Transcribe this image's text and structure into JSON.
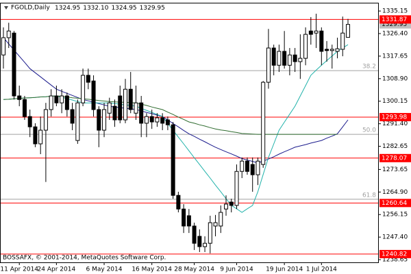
{
  "chart_data": {
    "type": "candlestick",
    "title": "FGOLD,Daily",
    "ohlc_caption": [
      "1324.95",
      "1332.10",
      "1324.95",
      "1329.95"
    ],
    "watermark": "BOSSAFX, © 2001-2014, MetaQuotes Software Corp.",
    "categories": [
      null,
      null,
      null,
      "11 Apr 2014",
      null,
      null,
      null,
      null,
      null,
      null,
      "24 Apr 2014",
      null,
      null,
      null,
      null,
      null,
      null,
      null,
      null,
      "6 May 2014",
      null,
      null,
      null,
      null,
      null,
      null,
      null,
      null,
      "16 May 2014",
      null,
      null,
      null,
      null,
      null,
      null,
      null,
      "28 May 2014",
      null,
      null,
      null,
      null,
      null,
      null,
      null,
      "9 Jun 2014",
      null,
      null,
      null,
      null,
      null,
      null,
      null,
      null,
      "19 Jun 2014",
      null,
      null,
      null,
      null,
      null,
      null,
      "1 Jul 2014",
      null,
      null,
      null,
      null,
      null
    ],
    "open": [
      1318.1,
      1324.8,
      1326.6,
      1302.2,
      1300.8,
      1294.2,
      1290.2,
      1283.6,
      1288.9,
      1296.9,
      1302.2,
      1299.5,
      1302.2,
      1296.9,
      1284.9,
      1299.5,
      1310.2,
      1308.0,
      1296.9,
      1288.9,
      1295.5,
      1298.2,
      1302.2,
      1292.9,
      1304.8,
      1295.5,
      1299.5,
      1291.6,
      1294.2,
      1292.1,
      1293.7,
      1292.9,
      1291.0,
      1263.6,
      1258.3,
      1255.7,
      1251.7,
      1247.7,
      1243.7,
      1245.0,
      1251.7,
      1251.7,
      1258.3,
      1261.0,
      1259.7,
      1272.9,
      1276.9,
      1275.6,
      1271.6,
      1275.6,
      1307.5,
      1320.8,
      1314.1,
      1319.5,
      1314.1,
      1318.1,
      1315.5,
      1316.8,
      1327.4,
      1326.6,
      1327.4,
      1320.3,
      1319.8,
      1319.5,
      1320.3,
      1324.95
    ],
    "high": [
      1328.8,
      1330.6,
      1327.4,
      1306.2,
      1302.2,
      1296.9,
      1291.6,
      1294.2,
      1299.5,
      1304.8,
      1306.2,
      1304.8,
      1303.5,
      1299.5,
      1300.8,
      1312.8,
      1312.8,
      1310.2,
      1298.2,
      1299.5,
      1301.5,
      1300.8,
      1306.2,
      1308.8,
      1311.5,
      1306.2,
      1302.2,
      1295.5,
      1296.9,
      1295.5,
      1295.5,
      1294.2,
      1292.1,
      1265.0,
      1260.2,
      1258.3,
      1253.0,
      1250.4,
      1247.7,
      1255.7,
      1256.0,
      1259.7,
      1263.6,
      1262.3,
      1275.6,
      1278.3,
      1278.3,
      1278.3,
      1278.3,
      1308.0,
      1328.2,
      1322.1,
      1322.1,
      1327.4,
      1320.8,
      1320.8,
      1326.1,
      1328.8,
      1332.8,
      1334.1,
      1328.8,
      1323.5,
      1322.1,
      1324.8,
      1333.0,
      1332.1
    ],
    "low": [
      1312.8,
      1320.8,
      1300.8,
      1298.2,
      1292.9,
      1286.2,
      1282.3,
      1279.6,
      1268.8,
      1294.2,
      1298.2,
      1295.5,
      1294.2,
      1288.9,
      1283.6,
      1298.2,
      1304.8,
      1294.2,
      1282.3,
      1286.2,
      1292.9,
      1290.2,
      1291.6,
      1291.6,
      1295.5,
      1292.9,
      1286.2,
      1286.2,
      1289.4,
      1290.2,
      1288.9,
      1288.9,
      1262.3,
      1257.0,
      1249.0,
      1249.0,
      1242.4,
      1241.6,
      1241.6,
      1241.1,
      1247.7,
      1249.0,
      1255.7,
      1257.0,
      1258.3,
      1270.3,
      1271.6,
      1265.0,
      1267.6,
      1274.3,
      1305.0,
      1310.2,
      1311.5,
      1312.8,
      1310.2,
      1311.5,
      1308.8,
      1314.1,
      1322.1,
      1320.8,
      1314.1,
      1315.5,
      1312.8,
      1316.8,
      1317.6,
      1324.95
    ],
    "close": [
      1324.8,
      1327.4,
      1302.2,
      1300.8,
      1294.2,
      1290.2,
      1283.6,
      1288.9,
      1296.9,
      1302.2,
      1299.5,
      1302.2,
      1296.9,
      1291.6,
      1299.5,
      1310.2,
      1307.5,
      1296.9,
      1288.9,
      1296.9,
      1299.5,
      1292.9,
      1292.9,
      1304.8,
      1296.9,
      1299.5,
      1291.6,
      1294.2,
      1292.1,
      1293.7,
      1291.6,
      1291.0,
      1263.6,
      1258.3,
      1251.7,
      1251.7,
      1245.0,
      1243.7,
      1245.0,
      1253.0,
      1253.0,
      1257.0,
      1260.2,
      1259.7,
      1272.9,
      1276.9,
      1272.9,
      1271.6,
      1276.9,
      1307.5,
      1320.8,
      1314.1,
      1319.5,
      1314.1,
      1318.1,
      1315.5,
      1316.8,
      1326.1,
      1326.1,
      1327.4,
      1319.5,
      1319.8,
      1320.3,
      1320.5,
      1326.6,
      1329.95
    ],
    "up_color": "#ffffff",
    "down_color": "#000000",
    "moving_averages": [
      {
        "color": "#1a1a8c",
        "values": [
          1324.8,
          1322.4,
          1320.0,
          1317.6,
          1315.2,
          1312.8,
          1311.2,
          1309.6,
          1308.0,
          1306.4,
          1304.8,
          1304.0,
          1303.2,
          1302.4,
          1301.6,
          1300.8,
          1300.3,
          1299.8,
          1299.2,
          1298.7,
          1298.2,
          1297.9,
          1297.7,
          1297.4,
          1297.2,
          1296.9,
          1296.4,
          1295.8,
          1295.3,
          1294.7,
          1294.2,
          1292.9,
          1291.5,
          1290.2,
          1288.8,
          1287.5,
          1286.5,
          1285.4,
          1284.4,
          1283.3,
          1282.3,
          1281.4,
          1280.5,
          1279.7,
          1278.8,
          1277.9,
          1277.3,
          1276.8,
          1276.2,
          1276.9,
          1277.7,
          1278.6,
          1279.6,
          1280.5,
          1281.4,
          1282.3,
          1282.8,
          1283.3,
          1283.9,
          1284.4,
          1284.9,
          1285.8,
          1286.6,
          1287.5,
          1290.2,
          1292.9
        ]
      },
      {
        "color": "#20b2aa",
        "values": [
          1300.8,
          1300.9,
          1301.1,
          1301.2,
          1301.4,
          1301.5,
          1301.6,
          1301.8,
          1301.9,
          1302.1,
          1302.2,
          1301.7,
          1301.1,
          1300.6,
          1300.0,
          1299.5,
          1299.5,
          1299.5,
          1299.5,
          1299.5,
          1299.5,
          1299.2,
          1299.0,
          1298.7,
          1298.5,
          1298.2,
          1297.4,
          1296.6,
          1295.8,
          1295.0,
          1294.2,
          1291.5,
          1288.9,
          1286.2,
          1283.6,
          1280.9,
          1278.2,
          1275.6,
          1272.9,
          1270.3,
          1267.6,
          1265.0,
          1262.3,
          1259.7,
          1258.4,
          1257.0,
          1258.4,
          1259.7,
          1265.0,
          1271.7,
          1278.3,
          1283.6,
          1288.9,
          1292.0,
          1295.1,
          1298.2,
          1302.2,
          1306.2,
          1310.2,
          1312.2,
          1314.1,
          1315.9,
          1317.7,
          1319.5,
          1320.8,
          1322.1
        ]
      },
      {
        "color": "#2e6b2e",
        "values": [
          1300.8,
          1300.9,
          1301.1,
          1301.2,
          1301.4,
          1301.5,
          1301.6,
          1301.8,
          1301.9,
          1302.1,
          1302.2,
          1302.0,
          1301.8,
          1301.5,
          1301.3,
          1301.1,
          1300.9,
          1300.7,
          1300.4,
          1300.2,
          1300.0,
          1299.9,
          1299.8,
          1299.7,
          1299.6,
          1299.5,
          1299.0,
          1298.5,
          1297.9,
          1297.4,
          1296.9,
          1295.9,
          1295.0,
          1294.0,
          1293.1,
          1292.1,
          1291.6,
          1291.0,
          1290.5,
          1289.9,
          1289.4,
          1289.0,
          1288.7,
          1288.3,
          1288.0,
          1287.6,
          1287.5,
          1287.4,
          1287.3,
          1287.3,
          1287.3,
          1287.3,
          1287.3,
          1287.3,
          1287.3,
          1287.3,
          1287.3,
          1287.3,
          1287.3,
          1287.3,
          1287.3,
          1287.3,
          1287.3,
          1287.3,
          null,
          null
        ]
      }
    ],
    "levels": {
      "color": "#ff0000",
      "values": [
        1331.87,
        1293.98,
        1278.07,
        1260.64,
        1240.82
      ]
    },
    "fibo": {
      "color": "#a0a0a0",
      "levels": [
        {
          "label": "38.2",
          "price": 1312.0
        },
        {
          "label": "50.0",
          "price": 1287.3
        },
        {
          "label": "61.8",
          "price": 1262.1
        }
      ]
    },
    "ylim": [
      1237.6,
      1338.1
    ],
    "yticks": [
      1335.15,
      {
        "value": 1326.4,
        "label": "1326.40"
      },
      1317.65,
      {
        "value": 1308.9,
        "label": "1308.90"
      },
      1300.15,
      {
        "value": 1291.4,
        "label": "1291.40"
      },
      1282.65,
      1273.65,
      {
        "value": 1264.9,
        "label": "1264.90"
      },
      1256.15,
      {
        "value": 1247.4,
        "label": "1247.40"
      },
      1238.65
    ]
  }
}
